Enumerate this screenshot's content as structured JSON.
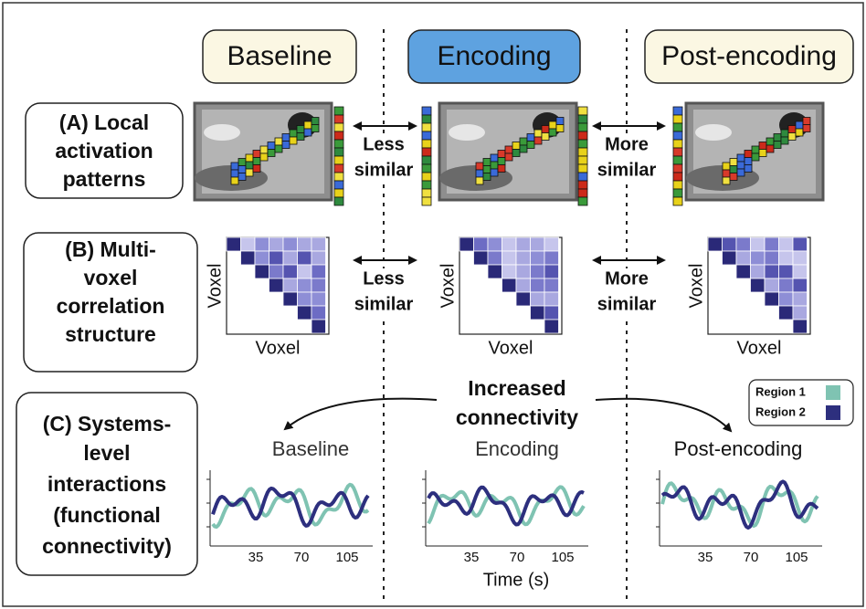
{
  "columns": [
    "Baseline",
    "Encoding",
    "Post-encoding"
  ],
  "rows": [
    {
      "label_lines": [
        "(A) Local",
        "activation",
        "patterns"
      ]
    },
    {
      "label_lines": [
        "(B) Multi-",
        "voxel",
        "correlation",
        "structure"
      ]
    },
    {
      "label_lines": [
        "(C) Systems-",
        "level",
        "interactions",
        "(functional",
        "connectivity)"
      ]
    }
  ],
  "comparisons": [
    {
      "lines": [
        "Less",
        "similar"
      ]
    },
    {
      "lines": [
        "More",
        "similar"
      ]
    }
  ],
  "matrix_axis_label": "Voxel",
  "connectivity_note": [
    "Increased",
    "connectivity"
  ],
  "legend": [
    "Region 1",
    "Region 2"
  ],
  "x_ticks": [
    "35",
    "70",
    "105"
  ],
  "x_axis_label": "Time (s)"
}
